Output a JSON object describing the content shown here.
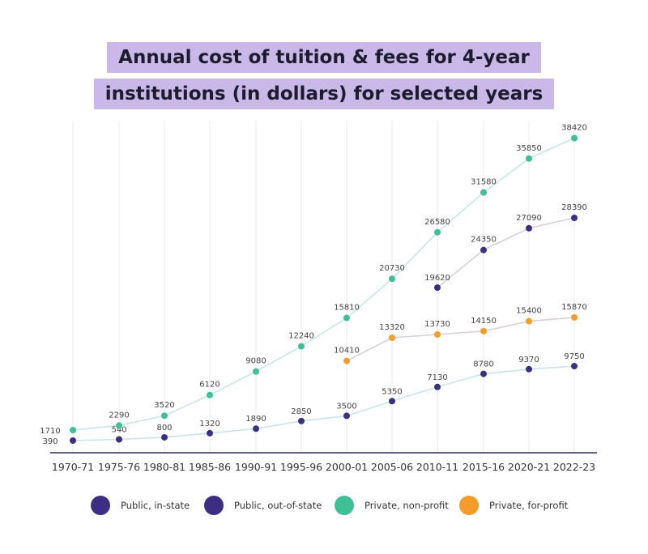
{
  "title_line1": "Annual cost of tuition & fees for 4-year",
  "title_line2": "institutions (in dollars) for selected years",
  "colors": {
    "public_in_state": "#3d2e84",
    "public_out_of_state": "#3d2e84",
    "private_nonprofit": "#3fbf94",
    "private_forprofit": "#f39c2a",
    "line_lower": "#c5e6ea",
    "line_upper": "#d9cfd9",
    "axis": "#2d2a5a",
    "grid": "#e8e8ee"
  },
  "legend": [
    {
      "label": "Public, in-state",
      "color": "#3d2e84"
    },
    {
      "label": "Public, out-of-state",
      "color": "#3d2e84"
    },
    {
      "label": "Private, non-profit",
      "color": "#3fbf94"
    },
    {
      "label": "Private, for-profit",
      "color": "#f39c2a"
    }
  ],
  "chart_data": {
    "type": "line",
    "title": "Annual cost of tuition & fees for 4-year institutions (in dollars) for selected years",
    "xlabel": "",
    "ylabel": "",
    "categories": [
      "1970-71",
      "1975-76",
      "1980-81",
      "1985-86",
      "1990-91",
      "1995-96",
      "2000-01",
      "2005-06",
      "2010-11",
      "2015-16",
      "2020-21",
      "2022-23"
    ],
    "ylim": [
      0,
      40000
    ],
    "grid": "vertical",
    "legend_position": "bottom",
    "series": [
      {
        "name": "Public, in-state",
        "color": "#3d2e84",
        "values": [
          390,
          540,
          800,
          1320,
          1890,
          2850,
          3500,
          5350,
          7130,
          8780,
          9370,
          9750
        ]
      },
      {
        "name": "Public, out-of-state",
        "color": "#3d2e84",
        "values": [
          null,
          null,
          null,
          null,
          null,
          null,
          null,
          null,
          19620,
          24350,
          27090,
          28390
        ]
      },
      {
        "name": "Private, non-profit",
        "color": "#3fbf94",
        "values": [
          1710,
          2290,
          3520,
          6120,
          9080,
          12240,
          15810,
          20730,
          26580,
          31580,
          35850,
          38420
        ]
      },
      {
        "name": "Private, for-profit",
        "color": "#f39c2a",
        "values": [
          null,
          null,
          null,
          null,
          null,
          null,
          10410,
          13320,
          13730,
          14150,
          15400,
          15870
        ]
      }
    ]
  }
}
